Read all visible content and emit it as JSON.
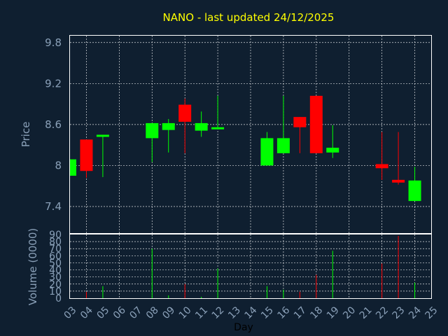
{
  "chart_data": [
    {
      "type": "candlestick",
      "title": "NANO - last updated 24/12/2025",
      "ylabel": "Price",
      "ylim": [
        7.0,
        9.9
      ],
      "yticks": [
        "7.4",
        "8",
        "8.6",
        "9.2",
        "9.8"
      ],
      "ytick_values": [
        7.4,
        8.0,
        8.6,
        9.2,
        9.8
      ],
      "grid": true,
      "up_color": "#00ff00",
      "down_color": "#ff0000",
      "candles": [
        {
          "day": 3,
          "open": 7.85,
          "close": 8.09,
          "high": 8.09,
          "low": 7.85
        },
        {
          "day": 4,
          "open": 8.38,
          "close": 7.92,
          "high": 8.38,
          "low": 7.82
        },
        {
          "day": 5,
          "open": 8.42,
          "close": 8.45,
          "high": 8.45,
          "low": 7.83
        },
        {
          "day": 8,
          "open": 8.4,
          "close": 8.62,
          "high": 8.62,
          "low": 8.05
        },
        {
          "day": 9,
          "open": 8.52,
          "close": 8.62,
          "high": 8.68,
          "low": 8.19
        },
        {
          "day": 10,
          "open": 8.89,
          "close": 8.64,
          "high": 8.98,
          "low": 8.18
        },
        {
          "day": 11,
          "open": 8.51,
          "close": 8.62,
          "high": 8.79,
          "low": 8.42
        },
        {
          "day": 12,
          "open": 8.54,
          "close": 8.56,
          "high": 9.02,
          "low": 8.54
        },
        {
          "day": 15,
          "open": 8.0,
          "close": 8.4,
          "high": 8.49,
          "low": 8.0
        },
        {
          "day": 16,
          "open": 8.18,
          "close": 8.4,
          "high": 9.02,
          "low": 8.18
        },
        {
          "day": 17,
          "open": 8.71,
          "close": 8.56,
          "high": 8.71,
          "low": 8.18
        },
        {
          "day": 18,
          "open": 9.02,
          "close": 8.18,
          "high": 9.02,
          "low": 8.18
        },
        {
          "day": 19,
          "open": 8.19,
          "close": 8.26,
          "high": 8.59,
          "low": 8.11
        },
        {
          "day": 22,
          "open": 8.02,
          "close": 7.96,
          "high": 8.49,
          "low": 7.79
        },
        {
          "day": 23,
          "open": 7.79,
          "close": 7.75,
          "high": 8.49,
          "low": 7.72
        },
        {
          "day": 24,
          "open": 7.48,
          "close": 7.78,
          "high": 7.98,
          "low": 7.48
        }
      ]
    },
    {
      "type": "bar",
      "ylabel": "Volume (0000)",
      "ylim": [
        0,
        90
      ],
      "yticks": [
        "0",
        "10",
        "20",
        "30",
        "40",
        "50",
        "60",
        "70",
        "80",
        "90"
      ],
      "ytick_values": [
        0,
        10,
        20,
        30,
        40,
        50,
        60,
        70,
        80,
        90
      ],
      "xlabel": "Day",
      "xlim": [
        3,
        25
      ],
      "xticks": [
        "03",
        "04",
        "05",
        "06",
        "07",
        "08",
        "09",
        "10",
        "11",
        "12",
        "13",
        "14",
        "15",
        "16",
        "17",
        "18",
        "19",
        "20",
        "21",
        "22",
        "23",
        "24",
        "25"
      ],
      "grid": true,
      "volumes": [
        {
          "day": 4,
          "value": 9,
          "color": "#ff0000"
        },
        {
          "day": 5,
          "value": 17,
          "color": "#00ff00"
        },
        {
          "day": 8,
          "value": 70,
          "color": "#00ff00"
        },
        {
          "day": 9,
          "value": 4,
          "color": "#00ff00"
        },
        {
          "day": 10,
          "value": 20,
          "color": "#ff0000"
        },
        {
          "day": 11,
          "value": 2,
          "color": "#00ff00"
        },
        {
          "day": 12,
          "value": 42,
          "color": "#00ff00"
        },
        {
          "day": 15,
          "value": 17,
          "color": "#00ff00"
        },
        {
          "day": 16,
          "value": 12,
          "color": "#00ff00"
        },
        {
          "day": 17,
          "value": 9,
          "color": "#ff0000"
        },
        {
          "day": 18,
          "value": 33,
          "color": "#ff0000"
        },
        {
          "day": 19,
          "value": 67,
          "color": "#00ff00"
        },
        {
          "day": 22,
          "value": 49,
          "color": "#ff0000"
        },
        {
          "day": 23,
          "value": 88,
          "color": "#ff0000"
        },
        {
          "day": 24,
          "value": 22,
          "color": "#00ff00"
        }
      ]
    }
  ]
}
